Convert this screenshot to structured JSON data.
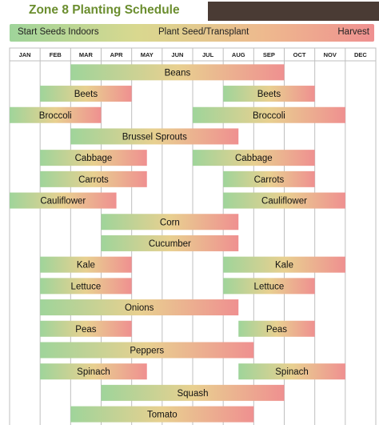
{
  "title": "Zone 8 Planting Schedule",
  "legend": {
    "start_indoors": "Start Seeds Indoors",
    "plant": "Plant Seed/Transplant",
    "harvest": "Harvest"
  },
  "colors": {
    "title": "#6b8e2f",
    "start": "#9fd49a",
    "mid": "#e8d090",
    "end": "#ef9090",
    "grid": "#bfbfbf",
    "header_bar": "#4a3b34"
  },
  "chart_data": {
    "type": "gantt",
    "title": "Zone 8 Planting Schedule",
    "months": [
      "JAN",
      "FEB",
      "MAR",
      "APR",
      "MAY",
      "JUN",
      "JUL",
      "AUG",
      "SEP",
      "OCT",
      "NOV",
      "DEC"
    ],
    "legend": [
      "Start Seeds Indoors",
      "Plant Seed/Transplant",
      "Harvest"
    ],
    "rows": [
      {
        "crop": "Beans",
        "bars": [
          {
            "start": 3,
            "end": 10
          }
        ]
      },
      {
        "crop": "Beets",
        "bars": [
          {
            "start": 2,
            "end": 5
          },
          {
            "start": 8,
            "end": 11
          }
        ]
      },
      {
        "crop": "Broccoli",
        "bars": [
          {
            "start": 1,
            "end": 4
          },
          {
            "start": 7,
            "end": 12
          }
        ]
      },
      {
        "crop": "Brussel Sprouts",
        "bars": [
          {
            "start": 3,
            "end": 8.5
          }
        ]
      },
      {
        "crop": "Cabbage",
        "bars": [
          {
            "start": 2,
            "end": 5.5
          },
          {
            "start": 7,
            "end": 11
          }
        ]
      },
      {
        "crop": "Carrots",
        "bars": [
          {
            "start": 2,
            "end": 5.5
          },
          {
            "start": 8,
            "end": 11
          }
        ]
      },
      {
        "crop": "Cauliflower",
        "bars": [
          {
            "start": 1,
            "end": 4.5
          },
          {
            "start": 8,
            "end": 12
          }
        ]
      },
      {
        "crop": "Corn",
        "bars": [
          {
            "start": 4,
            "end": 8.5
          }
        ]
      },
      {
        "crop": "Cucumber",
        "bars": [
          {
            "start": 4,
            "end": 8.5
          }
        ]
      },
      {
        "crop": "Kale",
        "bars": [
          {
            "start": 2,
            "end": 5
          },
          {
            "start": 8,
            "end": 12
          }
        ]
      },
      {
        "crop": "Lettuce",
        "bars": [
          {
            "start": 2,
            "end": 5
          },
          {
            "start": 8,
            "end": 11
          }
        ]
      },
      {
        "crop": "Onions",
        "bars": [
          {
            "start": 2,
            "end": 8.5
          }
        ]
      },
      {
        "crop": "Peas",
        "bars": [
          {
            "start": 2,
            "end": 5
          },
          {
            "start": 8.5,
            "end": 11
          }
        ]
      },
      {
        "crop": "Peppers",
        "bars": [
          {
            "start": 2,
            "end": 9
          }
        ]
      },
      {
        "crop": "Spinach",
        "bars": [
          {
            "start": 2,
            "end": 5.5
          },
          {
            "start": 8.5,
            "end": 12
          }
        ]
      },
      {
        "crop": "Squash",
        "bars": [
          {
            "start": 4,
            "end": 10
          }
        ]
      },
      {
        "crop": "Tomato",
        "bars": [
          {
            "start": 3,
            "end": 9
          }
        ]
      }
    ]
  }
}
